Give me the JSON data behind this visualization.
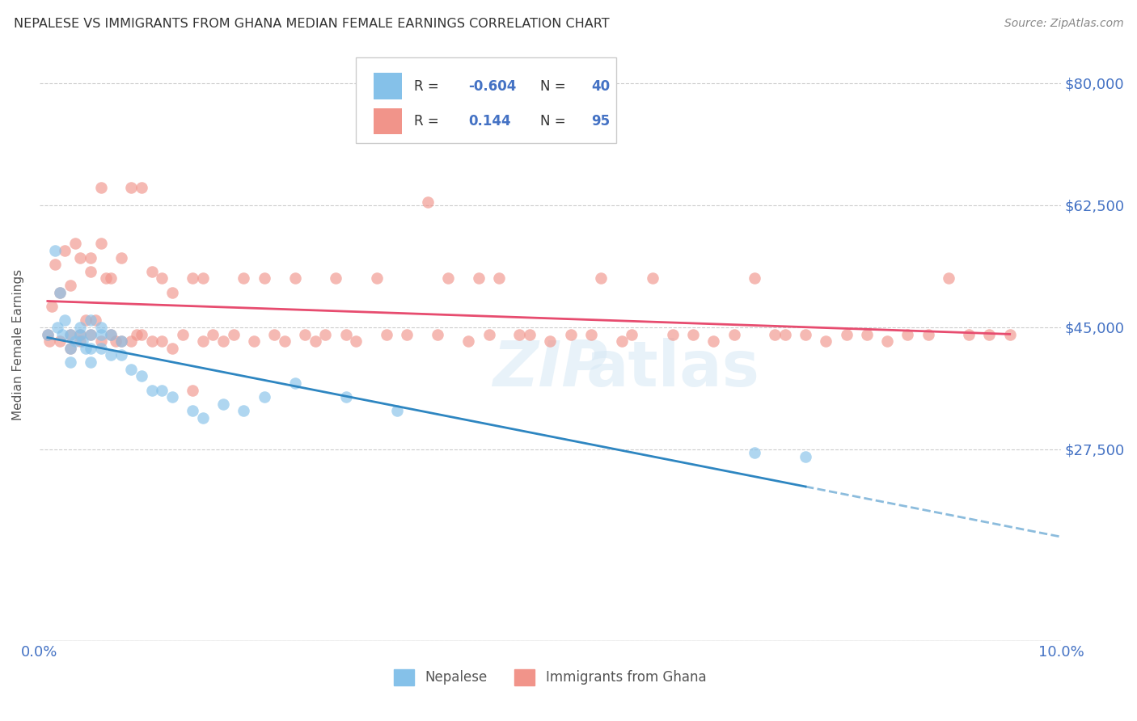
{
  "title": "NEPALESE VS IMMIGRANTS FROM GHANA MEDIAN FEMALE EARNINGS CORRELATION CHART",
  "source": "Source: ZipAtlas.com",
  "ylabel": "Median Female Earnings",
  "xlim": [
    0.0,
    0.1
  ],
  "ylim": [
    0,
    85000
  ],
  "yticks": [
    0,
    27500,
    45000,
    62500,
    80000
  ],
  "ytick_labels": [
    "",
    "$27,500",
    "$45,000",
    "$62,500",
    "$80,000"
  ],
  "xticks": [
    0.0,
    0.02,
    0.04,
    0.06,
    0.08,
    0.1
  ],
  "xtick_labels": [
    "0.0%",
    "",
    "",
    "",
    "",
    "10.0%"
  ],
  "color_blue": "#85C1E9",
  "color_pink": "#F1948A",
  "color_blue_line": "#2E86C1",
  "color_pink_line": "#E74C6F",
  "color_axis_labels": "#4472C4",
  "background_color": "#FFFFFF",
  "grid_color": "#CCCCCC",
  "nepalese_x": [
    0.0008,
    0.0015,
    0.0018,
    0.002,
    0.0022,
    0.0025,
    0.003,
    0.003,
    0.003,
    0.0035,
    0.004,
    0.004,
    0.0042,
    0.0045,
    0.005,
    0.005,
    0.005,
    0.005,
    0.006,
    0.006,
    0.006,
    0.007,
    0.007,
    0.008,
    0.008,
    0.009,
    0.01,
    0.011,
    0.012,
    0.013,
    0.015,
    0.016,
    0.018,
    0.02,
    0.022,
    0.025,
    0.03,
    0.035,
    0.07,
    0.075
  ],
  "nepalese_y": [
    44000,
    56000,
    45000,
    50000,
    44000,
    46000,
    44000,
    42000,
    40000,
    43000,
    45000,
    44000,
    43000,
    42000,
    46000,
    44000,
    42000,
    40000,
    45000,
    44000,
    42000,
    44000,
    41000,
    43000,
    41000,
    39000,
    38000,
    36000,
    36000,
    35000,
    33000,
    32000,
    34000,
    33000,
    35000,
    37000,
    35000,
    33000,
    27000,
    26500
  ],
  "ghana_x": [
    0.0008,
    0.001,
    0.0012,
    0.0015,
    0.002,
    0.002,
    0.0025,
    0.003,
    0.003,
    0.003,
    0.0035,
    0.004,
    0.004,
    0.004,
    0.0045,
    0.005,
    0.005,
    0.005,
    0.0055,
    0.006,
    0.006,
    0.006,
    0.0065,
    0.007,
    0.007,
    0.0075,
    0.008,
    0.008,
    0.009,
    0.009,
    0.0095,
    0.01,
    0.01,
    0.011,
    0.011,
    0.012,
    0.012,
    0.013,
    0.013,
    0.014,
    0.015,
    0.015,
    0.016,
    0.016,
    0.017,
    0.018,
    0.019,
    0.02,
    0.021,
    0.022,
    0.023,
    0.024,
    0.025,
    0.026,
    0.027,
    0.028,
    0.029,
    0.03,
    0.031,
    0.033,
    0.034,
    0.036,
    0.038,
    0.039,
    0.04,
    0.042,
    0.043,
    0.044,
    0.045,
    0.047,
    0.048,
    0.05,
    0.052,
    0.054,
    0.055,
    0.057,
    0.058,
    0.06,
    0.062,
    0.064,
    0.066,
    0.068,
    0.07,
    0.072,
    0.073,
    0.075,
    0.077,
    0.079,
    0.081,
    0.083,
    0.085,
    0.087,
    0.089,
    0.091,
    0.093,
    0.095
  ],
  "ghana_y": [
    44000,
    43000,
    48000,
    54000,
    43000,
    50000,
    56000,
    44000,
    51000,
    42000,
    57000,
    44000,
    55000,
    43000,
    46000,
    55000,
    53000,
    44000,
    46000,
    65000,
    57000,
    43000,
    52000,
    52000,
    44000,
    43000,
    55000,
    43000,
    65000,
    43000,
    44000,
    65000,
    44000,
    53000,
    43000,
    52000,
    43000,
    50000,
    42000,
    44000,
    52000,
    36000,
    52000,
    43000,
    44000,
    43000,
    44000,
    52000,
    43000,
    52000,
    44000,
    43000,
    52000,
    44000,
    43000,
    44000,
    52000,
    44000,
    43000,
    52000,
    44000,
    44000,
    63000,
    44000,
    52000,
    43000,
    52000,
    44000,
    52000,
    44000,
    44000,
    43000,
    44000,
    44000,
    52000,
    43000,
    44000,
    52000,
    44000,
    44000,
    43000,
    44000,
    52000,
    44000,
    44000,
    44000,
    43000,
    44000,
    44000,
    43000,
    44000,
    44000,
    52000,
    44000,
    44000,
    44000
  ]
}
